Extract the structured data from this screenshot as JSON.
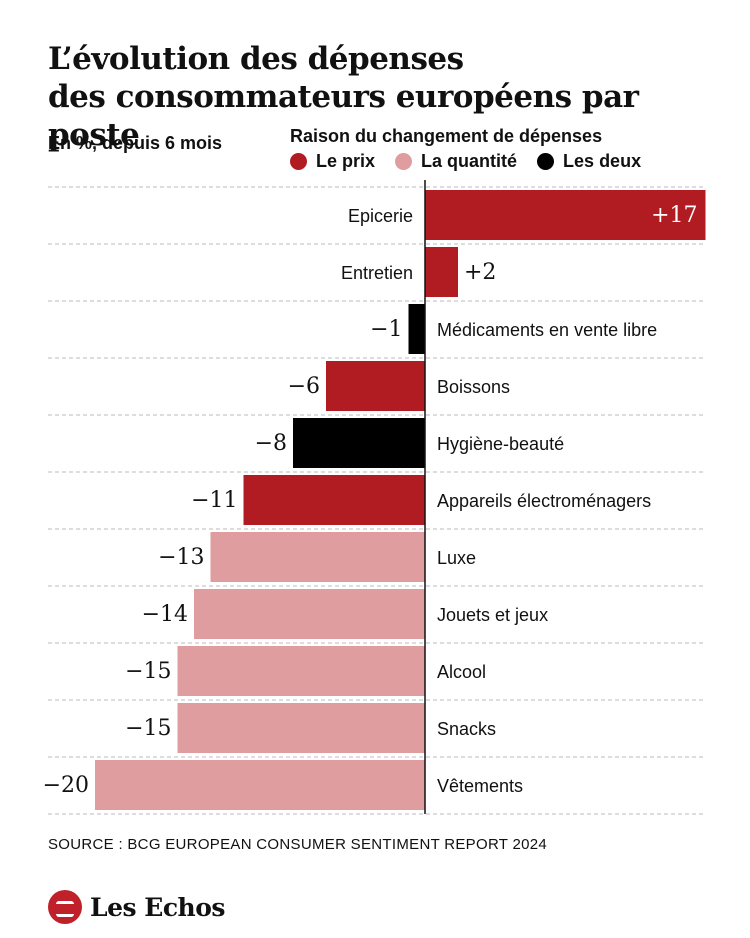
{
  "title_line1": "L’évolution des dépenses",
  "title_line2": "des consommateurs européens par poste",
  "subtitle": "En %, depuis 6 mois",
  "legend": {
    "title": "Raison du changement de dépenses",
    "items": [
      {
        "key": "prix",
        "label": "Le prix",
        "color": "#b01c22"
      },
      {
        "key": "quantite",
        "label": "La quantité",
        "color": "#e09da0"
      },
      {
        "key": "deux",
        "label": "Les deux",
        "color": "#000000"
      }
    ]
  },
  "chart_data": {
    "type": "bar",
    "orientation": "horizontal",
    "title": "L’évolution des dépenses des consommateurs européens par poste",
    "subtitle": "En %, depuis 6 mois",
    "xlim": [
      -20,
      17
    ],
    "categories": [
      "Epicerie",
      "Entretien",
      "Médicaments en vente libre",
      "Boissons",
      "Hygiène-beauté",
      "Appareils électroménagers",
      "Luxe",
      "Jouets et jeux",
      "Alcool",
      "Snacks",
      "Vêtements"
    ],
    "values": [
      17,
      2,
      -1,
      -6,
      -8,
      -11,
      -13,
      -14,
      -15,
      -15,
      -20
    ],
    "value_labels": [
      "+17",
      "+2",
      "−1",
      "−6",
      "−8",
      "−11",
      "−13",
      "−14",
      "−15",
      "−15",
      "−20"
    ],
    "reasons": [
      "prix",
      "prix",
      "deux",
      "prix",
      "deux",
      "prix",
      "quantite",
      "quantite",
      "quantite",
      "quantite",
      "quantite"
    ],
    "legend_title": "Raison du changement de dépenses",
    "gridlines": "dashed-horizontal"
  },
  "source": "SOURCE : BCG EUROPEAN CONSUMER SENTIMENT REPORT 2024",
  "logo": {
    "text": "Les Echos",
    "color": "#c0202a"
  }
}
